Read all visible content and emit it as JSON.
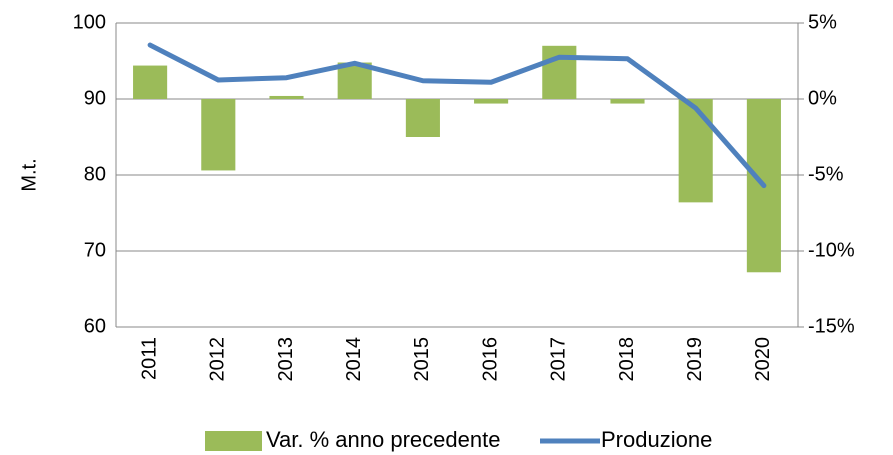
{
  "chart_data": {
    "type": "bar_line",
    "y_label": "M.t.",
    "categories": [
      "2011",
      "2012",
      "2013",
      "2014",
      "2015",
      "2016",
      "2017",
      "2018",
      "2019",
      "2020"
    ],
    "series": [
      {
        "name": "Var. % anno precedente",
        "type": "bar",
        "axis": "y2",
        "color": "#9bbb59",
        "values": [
          2.2,
          -4.7,
          0.2,
          2.4,
          -2.5,
          -0.3,
          3.5,
          -0.3,
          -6.8,
          -11.4
        ]
      },
      {
        "name": "Produzione",
        "type": "line",
        "axis": "y",
        "color": "#4f81bd",
        "values": [
          97.1,
          92.5,
          92.8,
          94.7,
          92.4,
          92.2,
          95.5,
          95.3,
          88.8,
          78.6
        ]
      }
    ],
    "ylim": [
      60,
      100
    ],
    "yticks": [
      60,
      70,
      80,
      90,
      100
    ],
    "y2lim": [
      -15,
      5
    ],
    "y2ticks": [
      {
        "value": -15,
        "label": "-15%"
      },
      {
        "value": -10,
        "label": "-10%"
      },
      {
        "value": -5,
        "label": "-5%"
      },
      {
        "value": 0,
        "label": "0%"
      },
      {
        "value": 5,
        "label": "5%"
      }
    ],
    "grid": true,
    "legend": "bottom"
  }
}
